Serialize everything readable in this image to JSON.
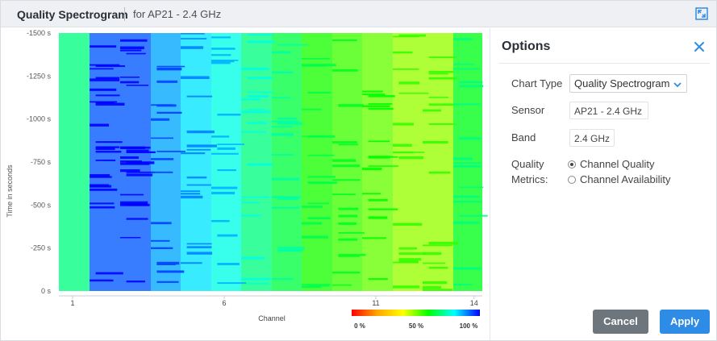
{
  "header": {
    "title": "Quality Spectrogram",
    "subtitle": "for AP21 - 2.4 GHz"
  },
  "icons": {
    "expand": "expand-icon",
    "close": "close-icon",
    "dropdown": "chevron-down-icon"
  },
  "chart_data": {
    "type": "heatmap",
    "title": "",
    "xlabel": "Channel",
    "ylabel": "Time in seconds",
    "x_ticks": [
      "1",
      "6",
      "11",
      "14"
    ],
    "y_ticks": [
      "-1500 s",
      "-1250 s",
      "-1000 s",
      "-750 s",
      "-500 s",
      "-250 s",
      "0 s"
    ],
    "ylim": [
      -1500,
      0
    ],
    "colorscale": {
      "labels": [
        "0 %",
        "50 %",
        "100 %"
      ],
      "colors": [
        "#ff0000",
        "#ffa500",
        "#ffff00",
        "#00ff00",
        "#00ffff",
        "#0000ff"
      ]
    },
    "channel_quality_pct": [
      {
        "channel": 1,
        "value": 70
      },
      {
        "channel": 2,
        "value": 93
      },
      {
        "channel": 3,
        "value": 93
      },
      {
        "channel": 4,
        "value": 87
      },
      {
        "channel": 5,
        "value": 82
      },
      {
        "channel": 6,
        "value": 78
      },
      {
        "channel": 7,
        "value": 70
      },
      {
        "channel": 8,
        "value": 65
      },
      {
        "channel": 9,
        "value": 58
      },
      {
        "channel": 10,
        "value": 55
      },
      {
        "channel": 11,
        "value": 52
      },
      {
        "channel": 12,
        "value": 48
      },
      {
        "channel": 13,
        "value": 48
      },
      {
        "channel": 14,
        "value": 62
      }
    ]
  },
  "options": {
    "title": "Options",
    "chart_type_label": "Chart Type",
    "chart_type_value": "Quality Spectrogram",
    "sensor_label": "Sensor",
    "sensor_value": "AP21 - 2.4 GHz",
    "band_label": "Band",
    "band_value": "2.4 GHz",
    "quality_label_1": "Quality",
    "quality_label_2": "Metrics:",
    "metric_options": [
      "Channel Quality",
      "Channel Availability"
    ],
    "selected_metric": "Channel Quality",
    "cancel_label": "Cancel",
    "apply_label": "Apply"
  }
}
